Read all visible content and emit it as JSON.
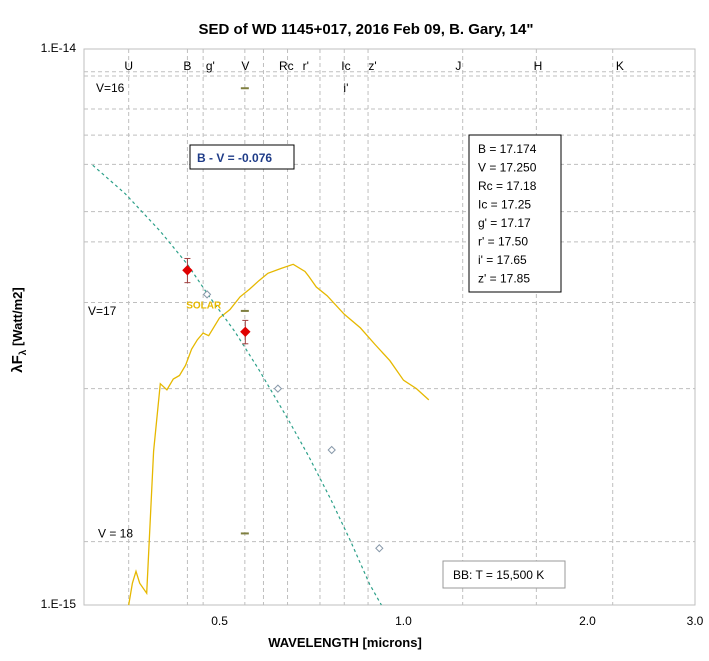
{
  "chart_data": {
    "type": "scatter",
    "title": "SED of WD 1145+017, 2016 Feb 09, B. Gary, 14\"",
    "xlabel": "WAVELENGTH [microns]",
    "ylabel_main": "λF",
    "ylabel_sub": "λ",
    "ylabel_unit": " [Watt/m2]",
    "x_scale": "log",
    "y_scale": "log",
    "xlim": [
      0.3,
      3.0
    ],
    "ylim": [
      1e-15,
      1e-14
    ],
    "x_tick_labels": [
      {
        "x": 0.5,
        "label": "0.5"
      },
      {
        "x": 1.0,
        "label": "1.0"
      },
      {
        "x": 2.0,
        "label": "2.0"
      },
      {
        "x": 3.0,
        "label": "3.0"
      }
    ],
    "y_tick_labels": [
      {
        "y": 1e-14,
        "label": "1.E-14"
      },
      {
        "y": 1e-15,
        "label": "1.E-15"
      }
    ],
    "band_lines_x": [
      0.355,
      0.443,
      0.47,
      0.55,
      0.59,
      0.646,
      0.73,
      0.8,
      0.875,
      1.25,
      1.65,
      2.2
    ],
    "band_labels": [
      {
        "x": 0.355,
        "label": "U"
      },
      {
        "x": 0.443,
        "label": "B"
      },
      {
        "x": 0.483,
        "label": "g'"
      },
      {
        "x": 0.551,
        "label": "V"
      },
      {
        "x": 0.643,
        "label": "Rc"
      },
      {
        "x": 0.692,
        "label": "r'"
      },
      {
        "x": 0.805,
        "label": "Ic"
      },
      {
        "x": 0.89,
        "label": "z'"
      },
      {
        "x": 1.23,
        "label": "J"
      },
      {
        "x": 1.66,
        "label": "H"
      },
      {
        "x": 2.26,
        "label": "K"
      }
    ],
    "i_prime_label": {
      "x": 0.805,
      "label": "i'"
    },
    "horizontal_gridlines_y": [
      9.1e-15,
      7.8e-15,
      7e-15,
      6.2e-15,
      5.1e-15,
      4.5e-15,
      3.5e-15,
      2.45e-15,
      1.3e-15
    ],
    "v_magnitude_markers": [
      {
        "label": "V=16",
        "x": 0.55,
        "y": 8.5e-15
      },
      {
        "label": "V=17",
        "x": 0.55,
        "y": 3.38e-15
      },
      {
        "label": "V = 18",
        "x": 0.55,
        "y": 1.345e-15
      }
    ],
    "series": [
      {
        "name": "measured",
        "marker": "diamond",
        "color": "#e00000",
        "points": [
          {
            "x": 0.443,
            "y": 4e-15,
            "yerr_hi": 4.2e-15,
            "yerr_lo": 3.8e-15
          },
          {
            "x": 0.551,
            "y": 3.1e-15,
            "yerr_hi": 3.25e-15,
            "yerr_lo": 2.95e-15
          }
        ]
      },
      {
        "name": "blackbody",
        "style": "dashed",
        "color": "#2ca089",
        "x": [
          0.31,
          0.35,
          0.4,
          0.443,
          0.48,
          0.53,
          0.58,
          0.65,
          0.7,
          0.76,
          0.82,
          0.88,
          0.92
        ],
        "y": [
          6.18e-15,
          5.5e-15,
          4.7e-15,
          4.1e-15,
          3.6e-15,
          3.1e-15,
          2.65e-15,
          2.14e-15,
          1.85e-15,
          1.55e-15,
          1.3e-15,
          1.09e-15,
          1e-15
        ]
      },
      {
        "name": "blackbody-points",
        "marker": "open-diamond",
        "color": "#8899aa",
        "x": [
          0.477,
          0.623,
          0.763,
          0.913
        ],
        "y": [
          3.62e-15,
          2.45e-15,
          1.9e-15,
          1.265e-15
        ]
      },
      {
        "name": "solar",
        "style": "line",
        "color": "#e6b800",
        "x": [
          0.355,
          0.36,
          0.365,
          0.37,
          0.38,
          0.39,
          0.4,
          0.41,
          0.42,
          0.43,
          0.44,
          0.45,
          0.46,
          0.47,
          0.48,
          0.5,
          0.52,
          0.54,
          0.56,
          0.58,
          0.6,
          0.63,
          0.66,
          0.69,
          0.7,
          0.72,
          0.75,
          0.8,
          0.85,
          0.9,
          0.95,
          1.0,
          1.05,
          1.1
        ],
        "y": [
          1e-15,
          1.1e-15,
          1.15e-15,
          1.1e-15,
          1.05e-15,
          1.9e-15,
          2.5e-15,
          2.45e-15,
          2.55e-15,
          2.6e-15,
          2.7e-15,
          2.9e-15,
          3e-15,
          3.1e-15,
          3.05e-15,
          3.3e-15,
          3.4e-15,
          3.6e-15,
          3.7e-15,
          3.85e-15,
          3.95e-15,
          4.05e-15,
          4.1e-15,
          4e-15,
          3.9e-15,
          3.75e-15,
          3.6e-15,
          3.35e-15,
          3.15e-15,
          2.95e-15,
          2.75e-15,
          2.55e-15,
          2.45e-15,
          2.35e-15
        ]
      }
    ],
    "solar_label": {
      "text": "SOLAR",
      "x": 0.49,
      "y": 3.3e-15
    },
    "bv_box": "B - V = -0.076",
    "magnitudes_box": [
      "B    = 17.174",
      "V    = 17.250",
      "Rc = 17.18",
      "Ic  = 17.25",
      "g'  = 17.17",
      "r'  = 17.50",
      "i'   = 17.65",
      "z'  = 17.85"
    ],
    "bb_box": "BB:  T = 15,500 K"
  }
}
